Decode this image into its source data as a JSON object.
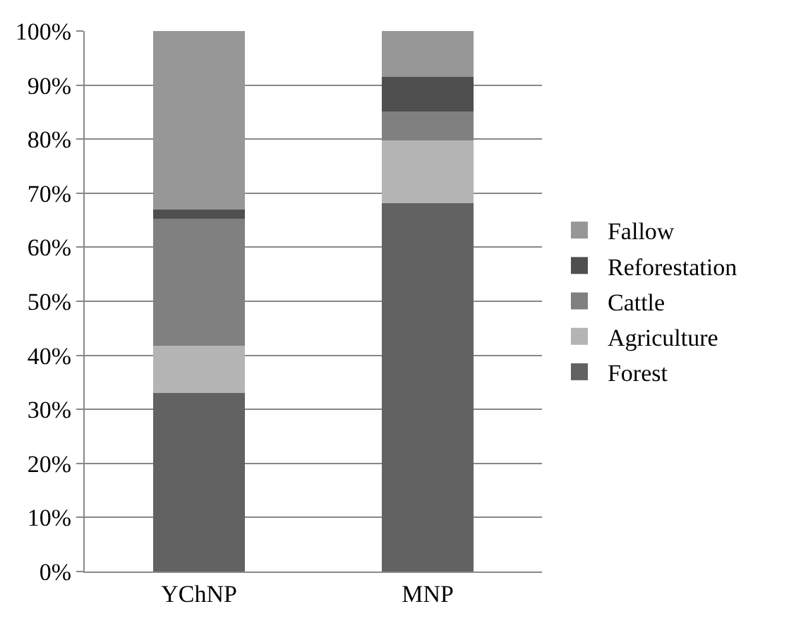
{
  "chart_data": {
    "type": "bar",
    "stacked": true,
    "categories": [
      "YChNP",
      "MNP"
    ],
    "series": [
      {
        "name": "Forest",
        "color": "#626262",
        "values": [
          33.0,
          68.2
        ]
      },
      {
        "name": "Agriculture",
        "color": "#b4b4b4",
        "values": [
          8.8,
          11.6
        ]
      },
      {
        "name": "Cattle",
        "color": "#808080",
        "values": [
          23.5,
          5.3
        ]
      },
      {
        "name": "Reforestation",
        "color": "#4f4f4f",
        "values": [
          1.7,
          6.4
        ]
      },
      {
        "name": "Fallow",
        "color": "#979797",
        "values": [
          33.0,
          8.5
        ]
      }
    ],
    "ylim": [
      0,
      100
    ],
    "yticks": [
      {
        "value": 0,
        "label": "0%"
      },
      {
        "value": 10,
        "label": "10%"
      },
      {
        "value": 20,
        "label": "20%"
      },
      {
        "value": 30,
        "label": "30%"
      },
      {
        "value": 40,
        "label": "40%"
      },
      {
        "value": 50,
        "label": "50%"
      },
      {
        "value": 60,
        "label": "60%"
      },
      {
        "value": 70,
        "label": "70%"
      },
      {
        "value": 80,
        "label": "80%"
      },
      {
        "value": 90,
        "label": "90%"
      },
      {
        "value": 100,
        "label": "100%"
      }
    ],
    "grid": "y",
    "legend": "right"
  }
}
